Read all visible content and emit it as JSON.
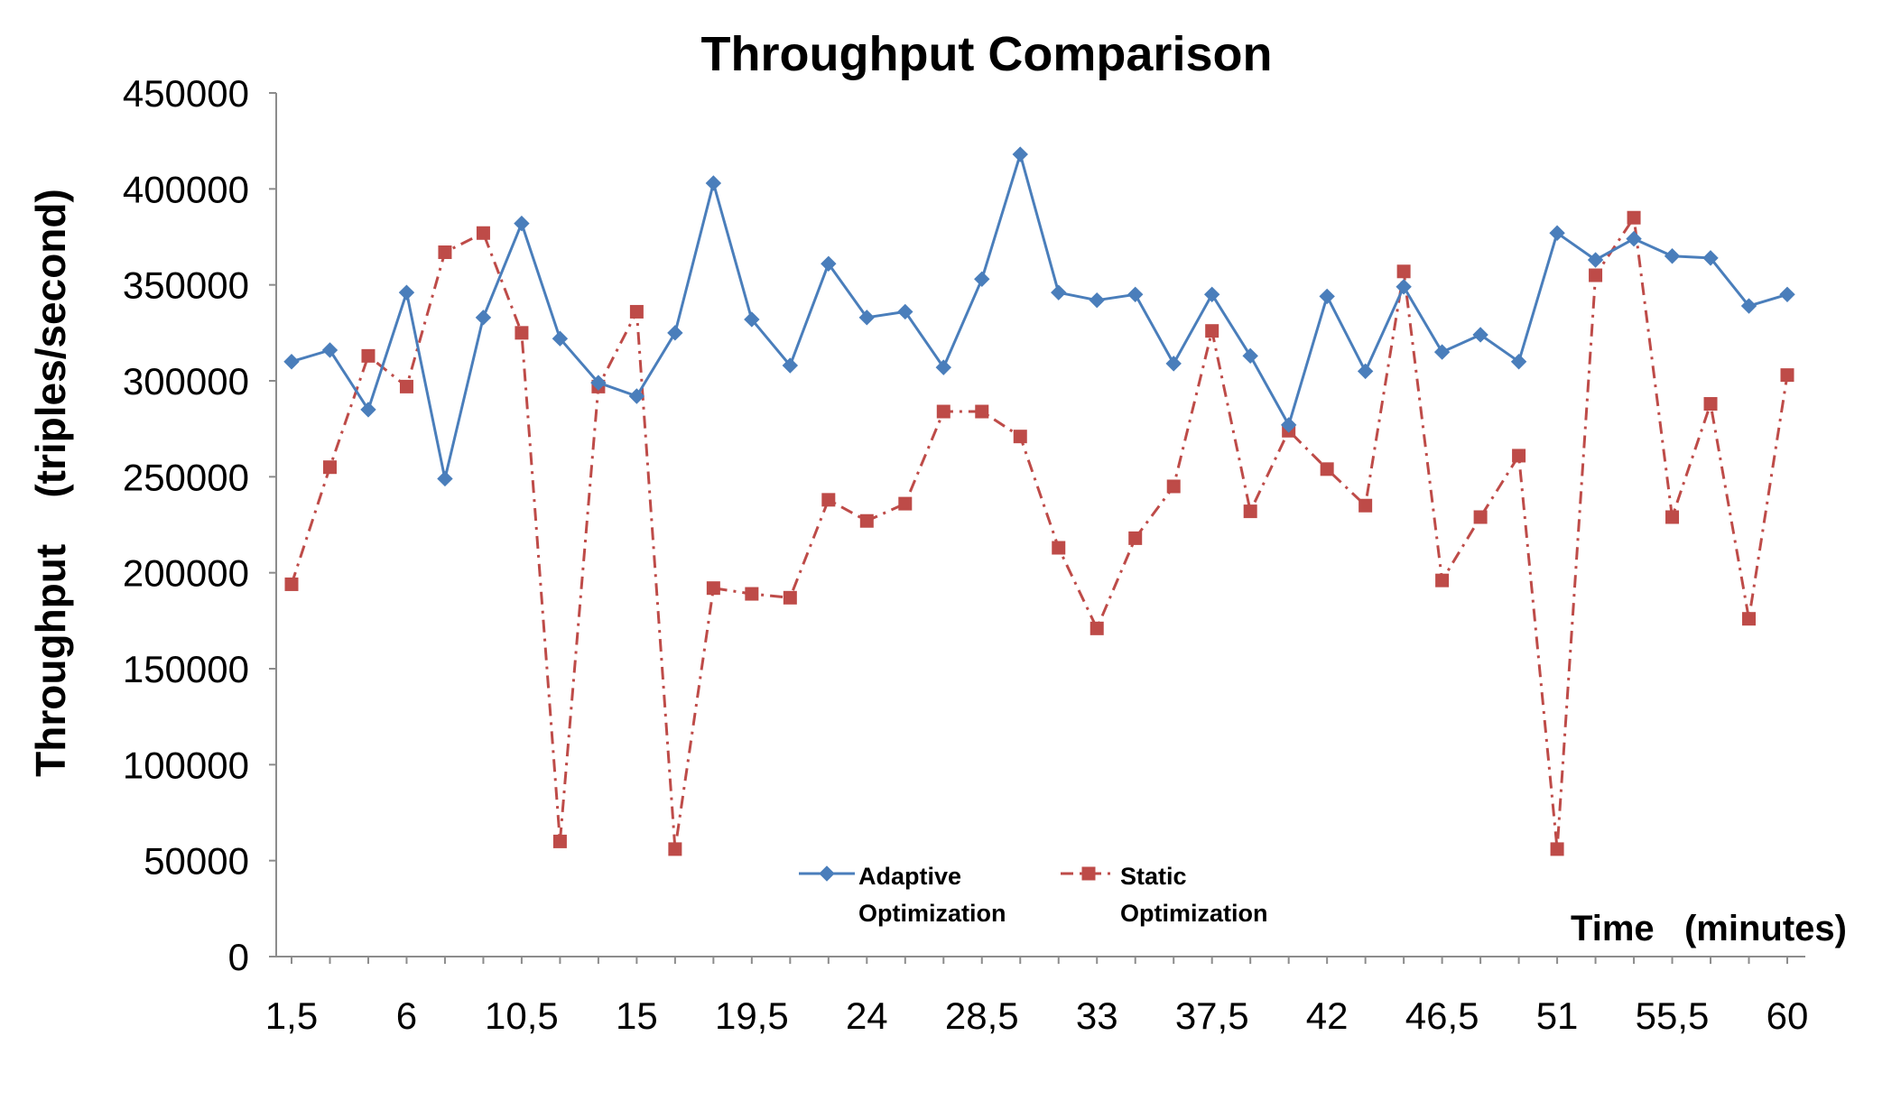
{
  "chart_data": {
    "type": "line",
    "title": "Throughput Comparison",
    "xlabel": "Time   (minutes)",
    "ylabel": "Throughput    (triples/second)",
    "ylim": [
      0,
      450000
    ],
    "y_ticks": [
      0,
      50000,
      100000,
      150000,
      200000,
      250000,
      300000,
      350000,
      400000,
      450000
    ],
    "x_tick_labels": [
      "1,5",
      "6",
      "10,5",
      "15",
      "19,5",
      "24",
      "28,5",
      "33",
      "37,5",
      "42",
      "46,5",
      "51",
      "55,5",
      "60"
    ],
    "x": [
      1.5,
      3,
      4.5,
      6,
      7.5,
      9,
      10.5,
      12,
      13.5,
      15,
      16.5,
      18,
      19.5,
      21,
      22.5,
      24,
      25.5,
      27,
      28.5,
      30,
      31.5,
      33,
      34.5,
      36,
      37.5,
      39,
      40.5,
      42,
      43.5,
      45,
      46.5,
      48,
      49.5,
      51,
      52.5,
      54,
      55.5,
      57,
      58.5,
      60
    ],
    "grid": false,
    "legend_position": "bottom-center",
    "series": [
      {
        "name": "Adaptive Optimization",
        "legend_lines": [
          "Adaptive",
          "Optimization"
        ],
        "color": "#4a7ebb",
        "marker": "diamond",
        "line_style": "solid",
        "values": [
          310000,
          316000,
          285000,
          346000,
          249000,
          333000,
          382000,
          322000,
          299000,
          292000,
          325000,
          403000,
          332000,
          308000,
          361000,
          333000,
          336000,
          307000,
          353000,
          418000,
          346000,
          342000,
          345000,
          309000,
          345000,
          313000,
          277000,
          344000,
          305000,
          349000,
          315000,
          324000,
          310000,
          377000,
          363000,
          374000,
          365000,
          364000,
          339000,
          345000
        ]
      },
      {
        "name": "Static Optimization",
        "legend_lines": [
          "Static",
          "Optimization"
        ],
        "color": "#be4b48",
        "marker": "square",
        "line_style": "dashdot",
        "values": [
          194000,
          255000,
          313000,
          297000,
          367000,
          377000,
          325000,
          60000,
          297000,
          336000,
          56000,
          192000,
          189000,
          187000,
          238000,
          227000,
          236000,
          284000,
          284000,
          271000,
          213000,
          171000,
          218000,
          245000,
          326000,
          232000,
          274000,
          254000,
          235000,
          357000,
          196000,
          229000,
          261000,
          56000,
          355000,
          385000,
          229000,
          288000,
          176000,
          303000
        ]
      }
    ]
  }
}
